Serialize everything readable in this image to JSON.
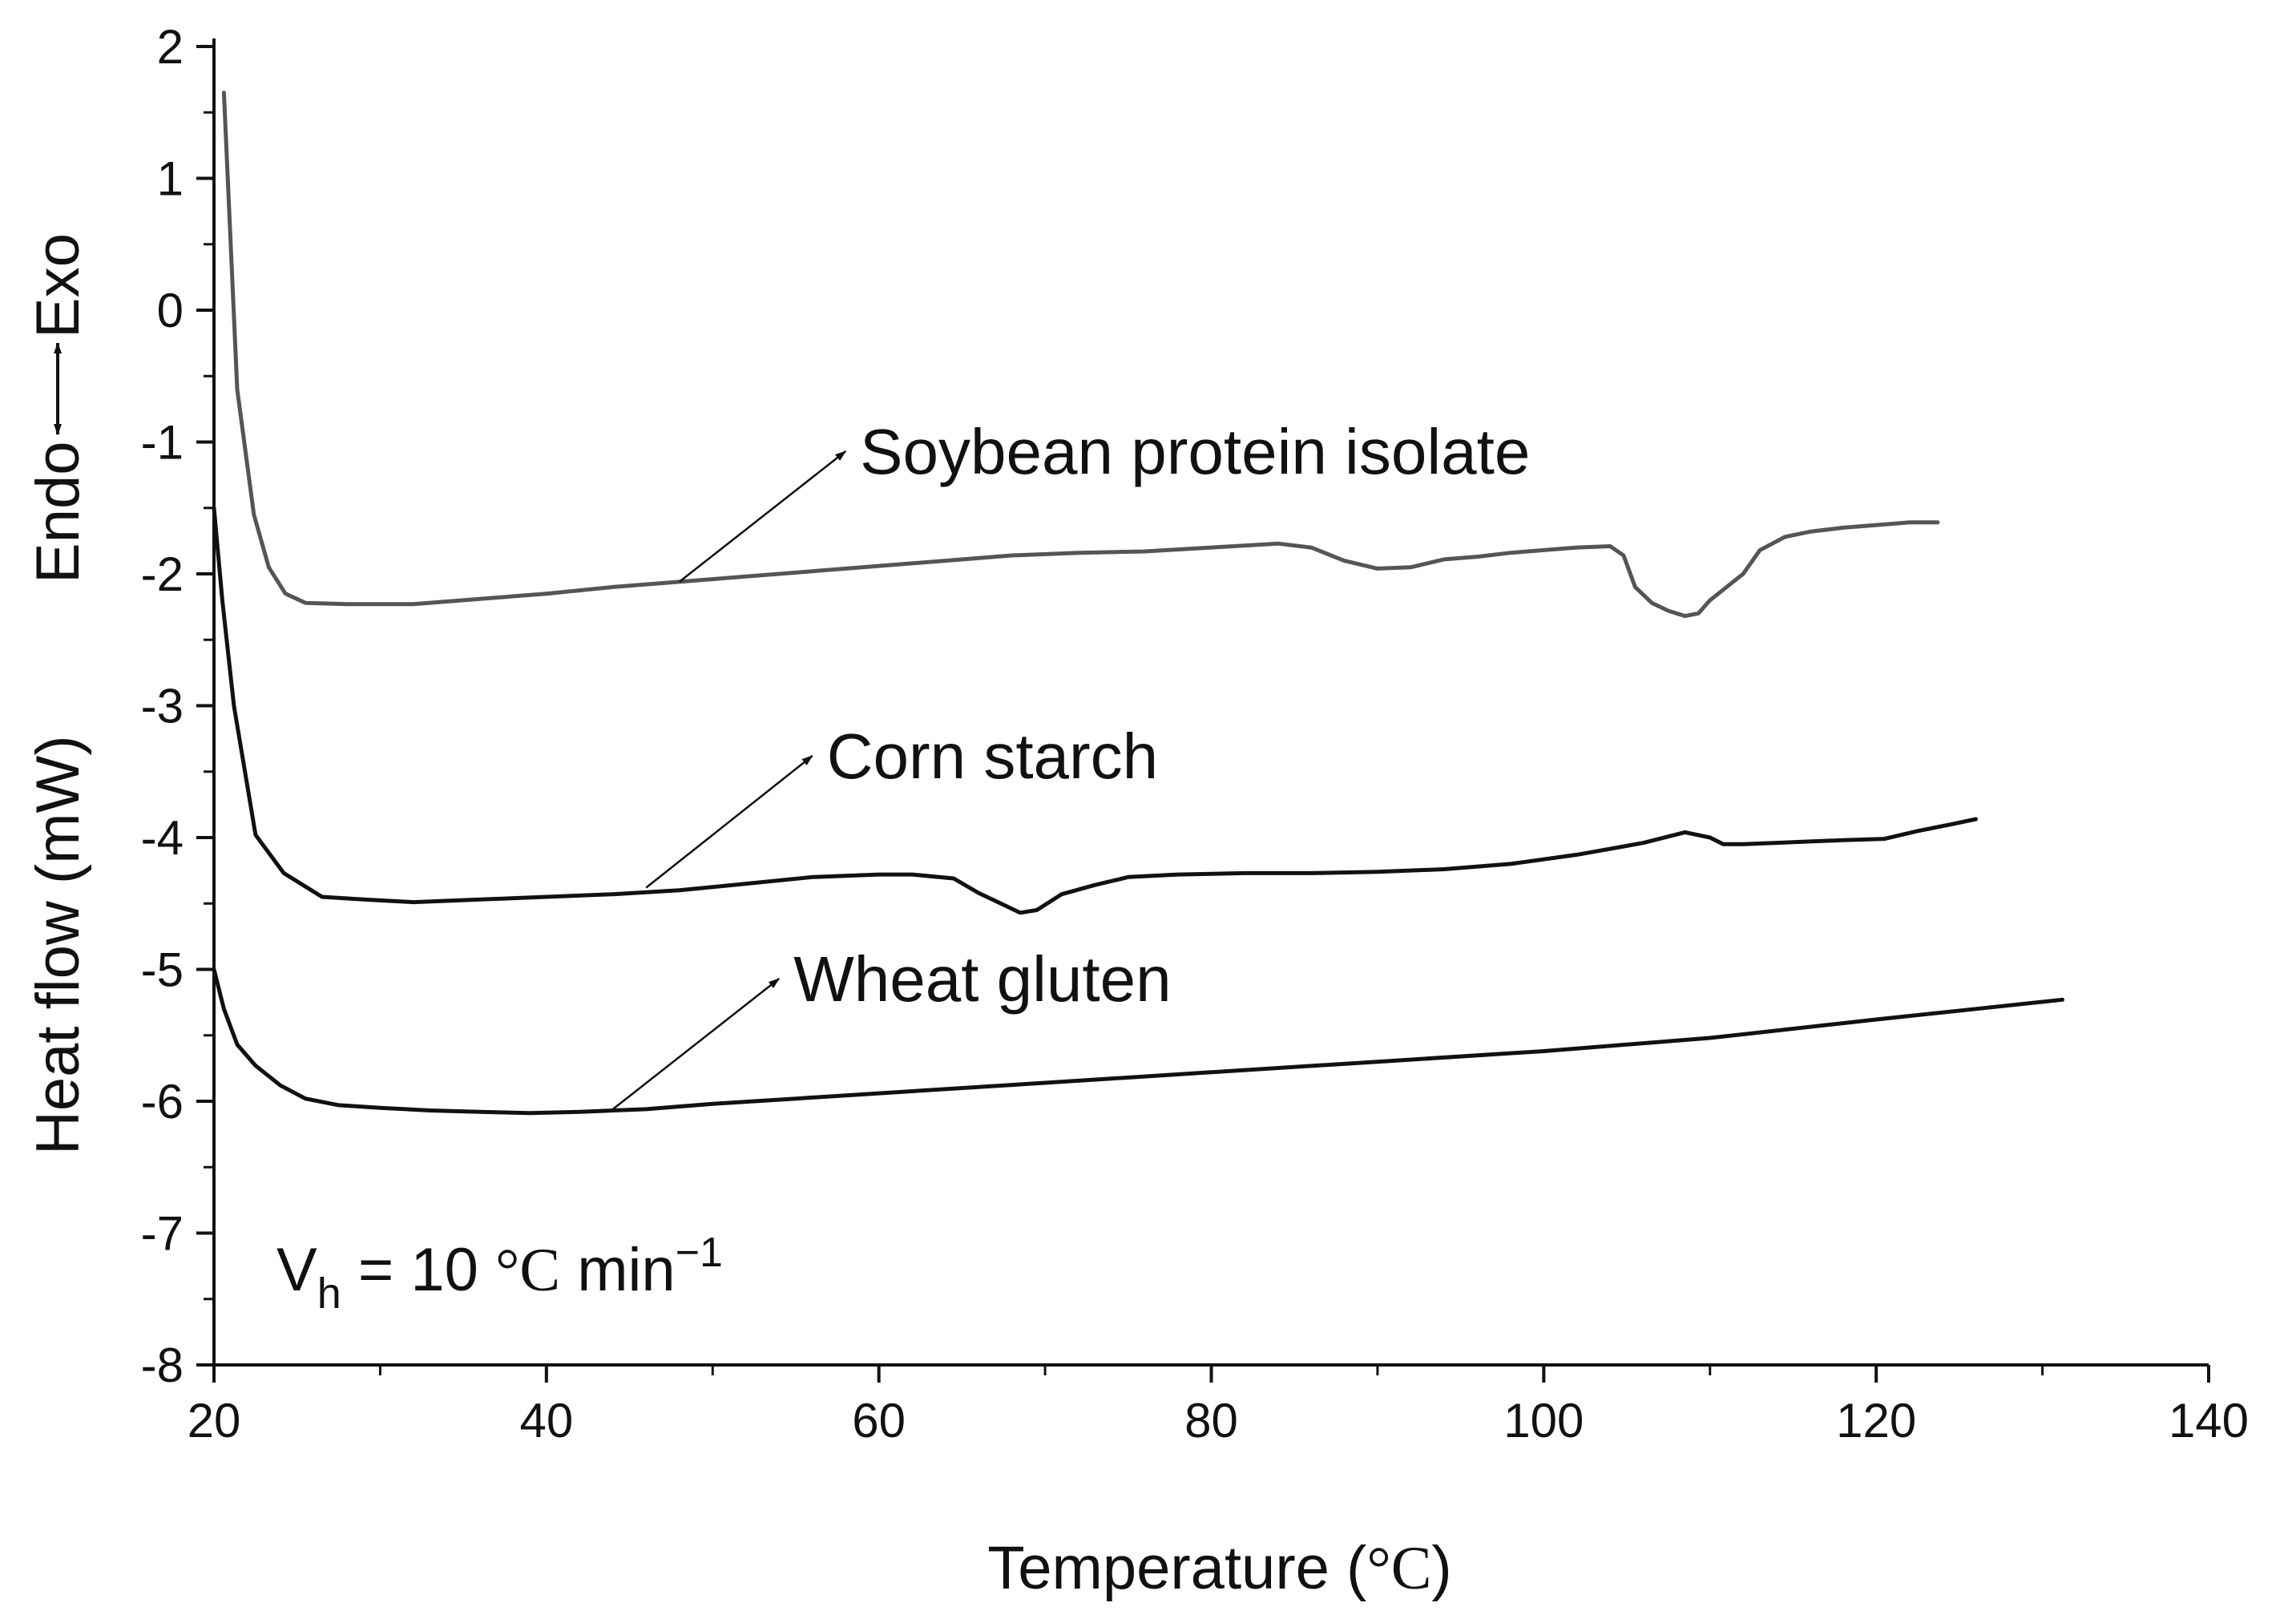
{
  "chart_data": {
    "type": "line",
    "title": "",
    "xlabel": {
      "text": "Temperature (",
      "unit": "°C",
      "close": ")"
    },
    "ylabel": {
      "main": "Heat flow (mW)",
      "direction_endo": "Endo",
      "direction_exo": "Exo"
    },
    "xlim": [
      20,
      140
    ],
    "ylim": [
      -8,
      2
    ],
    "x_ticks": [
      "20",
      "40",
      "60",
      "80",
      "100",
      "120",
      "140"
    ],
    "y_ticks": [
      "2",
      "1",
      "0",
      "-1",
      "-2",
      "-3",
      "-4",
      "-5",
      "-6",
      "-7",
      "-8"
    ],
    "grid": false,
    "legend": "none",
    "annotation": {
      "prefix": "V",
      "subscript": "h",
      "equals": " = 10 ",
      "unit": "°C",
      "rate": " min",
      "exponent": "−1"
    },
    "series": [
      {
        "name": "Soybean protein isolate",
        "color": "#555555",
        "x": [
          20.6,
          21.4,
          22.4,
          23.3,
          24.3,
          25.5,
          28,
          32,
          36,
          40,
          44,
          48,
          52,
          56,
          60,
          64,
          68,
          72,
          76,
          80,
          84,
          86,
          88,
          90,
          92,
          94,
          96,
          98,
          100,
          102,
          104,
          104.8,
          105.5,
          106.5,
          107.5,
          108.5,
          109.3,
          110,
          111,
          112,
          113,
          114.5,
          116,
          118,
          120,
          122,
          123.7
        ],
        "y": [
          1.65,
          -0.6,
          -1.55,
          -1.95,
          -2.15,
          -2.22,
          -2.23,
          -2.23,
          -2.19,
          -2.15,
          -2.1,
          -2.06,
          -2.02,
          -1.98,
          -1.94,
          -1.9,
          -1.86,
          -1.84,
          -1.83,
          -1.8,
          -1.77,
          -1.8,
          -1.9,
          -1.96,
          -1.95,
          -1.89,
          -1.87,
          -1.84,
          -1.82,
          -1.8,
          -1.79,
          -1.86,
          -2.1,
          -2.22,
          -2.28,
          -2.32,
          -2.3,
          -2.2,
          -2.1,
          -2.0,
          -1.82,
          -1.72,
          -1.68,
          -1.65,
          -1.63,
          -1.61,
          -1.61
        ]
      },
      {
        "name": "Corn starch",
        "color": "#111111",
        "x": [
          20.0,
          20.5,
          21.2,
          22.5,
          24.2,
          26.5,
          29,
          32,
          36,
          40,
          44,
          48,
          52,
          56,
          60,
          62,
          64.5,
          66,
          67.5,
          68.5,
          69.5,
          71,
          73,
          75,
          78,
          82,
          86,
          90,
          94,
          98,
          102,
          106,
          108.5,
          110,
          110.8,
          112,
          114,
          116,
          118,
          120.5,
          122.5,
          124.5,
          126
        ],
        "y": [
          -1.5,
          -2.2,
          -3.0,
          -3.98,
          -4.27,
          -4.45,
          -4.47,
          -4.49,
          -4.47,
          -4.45,
          -4.43,
          -4.4,
          -4.35,
          -4.3,
          -4.28,
          -4.28,
          -4.31,
          -4.42,
          -4.51,
          -4.57,
          -4.55,
          -4.43,
          -4.36,
          -4.3,
          -4.28,
          -4.27,
          -4.27,
          -4.26,
          -4.24,
          -4.2,
          -4.13,
          -4.04,
          -3.96,
          -4.0,
          -4.05,
          -4.05,
          -4.04,
          -4.03,
          -4.02,
          -4.01,
          -3.95,
          -3.9,
          -3.86
        ]
      },
      {
        "name": "Wheat gluten",
        "color": "#111111",
        "x": [
          20.0,
          20.6,
          21.4,
          22.5,
          24,
          25.5,
          27.5,
          30,
          33,
          36,
          39,
          42,
          46,
          50,
          55,
          60,
          70,
          80,
          90,
          100,
          110,
          120,
          126,
          131.2
        ],
        "y": [
          -5.0,
          -5.3,
          -5.57,
          -5.73,
          -5.88,
          -5.98,
          -6.03,
          -6.05,
          -6.07,
          -6.08,
          -6.09,
          -6.08,
          -6.06,
          -6.02,
          -5.98,
          -5.94,
          -5.86,
          -5.78,
          -5.7,
          -5.62,
          -5.52,
          -5.38,
          -5.3,
          -5.23
        ]
      }
    ],
    "labels": [
      {
        "series": 0,
        "text": "Soybean protein isolate",
        "arrow_from": [
          48,
          -2.06
        ],
        "arrow_to": [
          58,
          -1.07
        ]
      },
      {
        "series": 1,
        "text": "Corn starch",
        "arrow_from": [
          46,
          -4.38
        ],
        "arrow_to": [
          56,
          -3.38
        ]
      },
      {
        "series": 2,
        "text": "Wheat gluten",
        "arrow_from": [
          44,
          -6.06
        ],
        "arrow_to": [
          54,
          -5.07
        ]
      }
    ]
  }
}
